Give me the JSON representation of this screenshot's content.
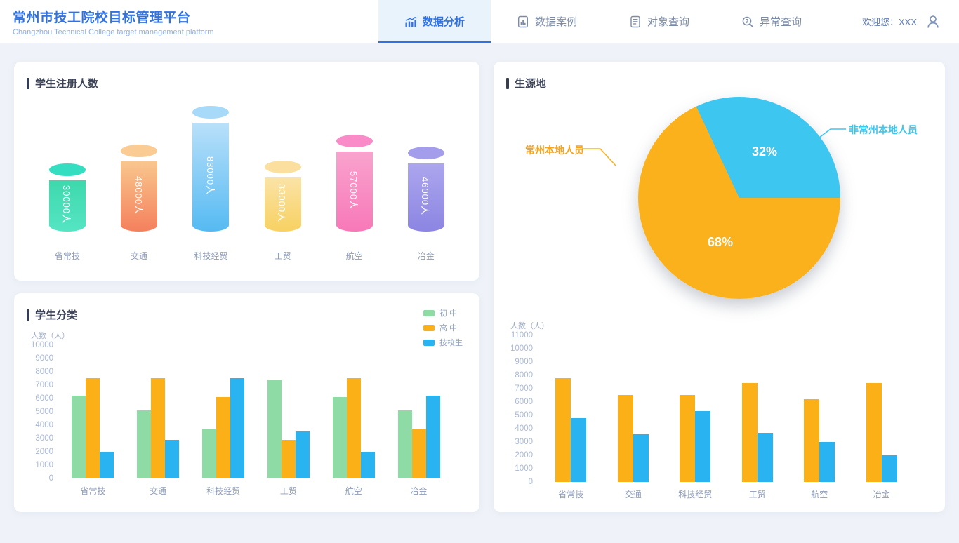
{
  "header": {
    "brand": {
      "title": "常州市技工院校目标管理平台",
      "subtitle": "Changzhou Technical College target management platform"
    },
    "nav": [
      {
        "label": "数据分析",
        "icon": "analysis-chart-icon",
        "active": true
      },
      {
        "label": "数据案例",
        "icon": "document-chart-icon",
        "active": false
      },
      {
        "label": "对象查询",
        "icon": "document-lines-icon",
        "active": false
      },
      {
        "label": "异常查询",
        "icon": "search-question-icon",
        "active": false
      }
    ],
    "welcome": "欢迎您：XXX"
  },
  "cards": {
    "registration": {
      "title": "学生注册人数"
    },
    "origin": {
      "title": "生源地"
    },
    "classification": {
      "title": "学生分类"
    }
  },
  "chart_data": [
    {
      "type": "bar",
      "style": "cylinder",
      "title": "学生注册人数",
      "unit": "人",
      "categories": [
        "省常技",
        "交通",
        "科技经贸",
        "工贸",
        "航空",
        "冶金"
      ],
      "values": [
        30000,
        48000,
        83000,
        33000,
        57000,
        46000
      ],
      "colors": [
        {
          "top": "#35DEC0",
          "from": "#3ED8AC",
          "to": "#55E5C3"
        },
        {
          "top": "#FACB92",
          "from": "#F9C68E",
          "to": "#F4805D"
        },
        {
          "top": "#A7D9F9",
          "from": "#B9E0FA",
          "to": "#55BAF2"
        },
        {
          "top": "#FBDF9E",
          "from": "#FAE3A6",
          "to": "#F8D161"
        },
        {
          "top": "#F98BC8",
          "from": "#F9A3CE",
          "to": "#F878B8"
        },
        {
          "top": "#A49DEC",
          "from": "#ACA6EE",
          "to": "#8C85E2"
        }
      ]
    },
    {
      "type": "pie",
      "title": "生源地",
      "slices": [
        {
          "label": "常州本地人员",
          "pct": 68,
          "pct_label": "68%",
          "color": "#FBB11C"
        },
        {
          "label": "非常州本地人员",
          "pct": 32,
          "pct_label": "32%",
          "color": "#3DC6F0"
        }
      ],
      "legend_position": "callout-lines"
    },
    {
      "type": "bar",
      "title": "学生分类",
      "ylabel": "人数（人）",
      "ylim": [
        0,
        10000
      ],
      "ytick_step": 1000,
      "grid": false,
      "legend_position": "top-right",
      "categories": [
        "省常技",
        "交通",
        "科技经贸",
        "工贸",
        "航空",
        "冶金"
      ],
      "series": [
        {
          "name": "初 中",
          "color": "#8FDBA5",
          "values": [
            6200,
            5100,
            3700,
            7400,
            6100,
            5100
          ]
        },
        {
          "name": "高 中",
          "color": "#FBB017",
          "values": [
            7500,
            7500,
            6100,
            2900,
            7500,
            3700
          ]
        },
        {
          "name": "技校生",
          "color": "#29B3F0",
          "values": [
            2000,
            2900,
            7500,
            3500,
            2000,
            6200
          ]
        }
      ]
    },
    {
      "type": "bar",
      "title": "",
      "ylabel": "人数（人）",
      "ylim": [
        0,
        11000
      ],
      "ytick_step": 1000,
      "grid": false,
      "categories": [
        "省常技",
        "交通",
        "科技经贸",
        "工贸",
        "航空",
        "冶金"
      ],
      "series": [
        {
          "name": "orange",
          "color": "#FBB017",
          "values": [
            7800,
            6500,
            6500,
            7400,
            6200,
            7400
          ]
        },
        {
          "name": "blue",
          "color": "#29B3F0",
          "values": [
            4800,
            3600,
            5300,
            3700,
            3000,
            2000
          ]
        }
      ]
    }
  ]
}
